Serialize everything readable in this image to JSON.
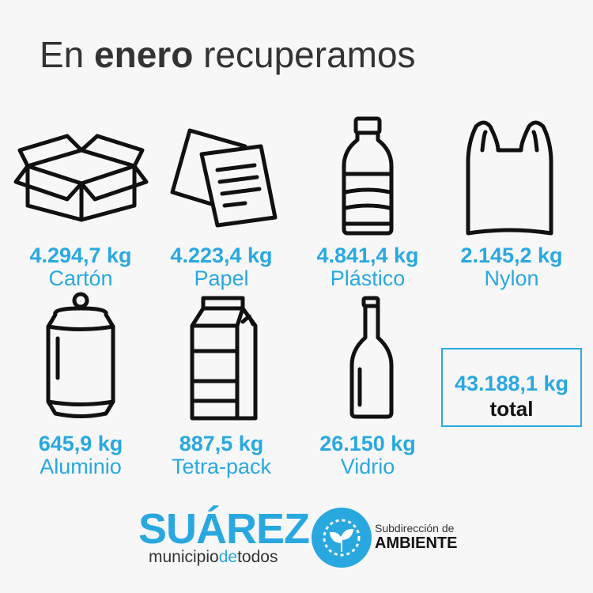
{
  "header": {
    "title_start": "En",
    "title_bold": "enero",
    "title_end": "recuperamos"
  },
  "items": [
    {
      "amount": "4.294,7 kg",
      "label": "Cartón"
    },
    {
      "amount": "4.223,4 kg",
      "label": "Papel"
    },
    {
      "amount": "4.841,4 kg",
      "label": "Plástico"
    },
    {
      "amount": "2.145,2 kg",
      "label": "Nylon"
    },
    {
      "amount": "645,9 kg",
      "label": "Aluminio"
    },
    {
      "amount": "887,5 kg",
      "label": "Tetra-pack"
    },
    {
      "amount": "26.150 kg",
      "label": "Vidrio"
    }
  ],
  "total": {
    "amount": "43.188,1 kg",
    "label": "total"
  },
  "footer": {
    "brand": "SUÁREZ",
    "tag_start": "municipio",
    "tag_mid": "de",
    "tag_end": "todos",
    "dept_line1": "Subdirección de",
    "dept_line2": "AMBIENTE"
  }
}
